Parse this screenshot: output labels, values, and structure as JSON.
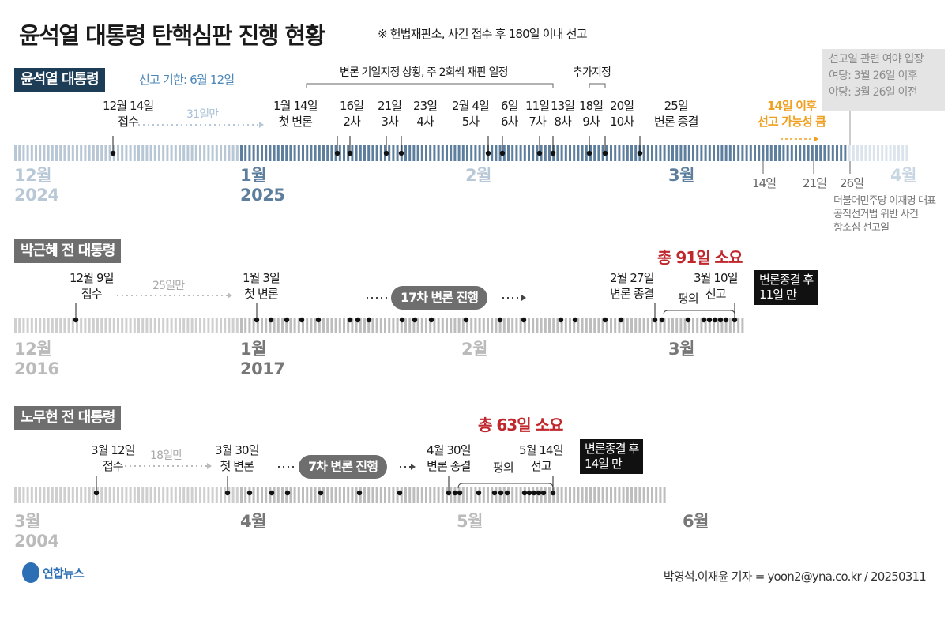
{
  "header": {
    "title": "윤석열 대통령 탄핵심판 진행 현황",
    "note": "※ 헌법재판소, 사건 접수 후 180일 이내 선고"
  },
  "yoon": {
    "label": "윤석열 대통령",
    "deadline": "선고 기한: 6월 12일",
    "bracket_label": "변론 기일지정 상황, 주 2회씩 재판 일정",
    "added_label": "추가지정",
    "info": [
      "선고일 관련 여야 입장",
      "여당: 3월 26일 이후",
      "야당: 3월 26일 이전"
    ],
    "gap_label": "31일만",
    "possible": [
      "14일 이후",
      "선고 가능성 큼"
    ],
    "events": [
      {
        "top": "12월 14일",
        "bottom": "접수"
      },
      {
        "top": "1월 14일",
        "bottom": "첫 변론"
      },
      {
        "top": "16일",
        "bottom": "2차"
      },
      {
        "top": "21일",
        "bottom": "3차"
      },
      {
        "top": "23일",
        "bottom": "4차"
      },
      {
        "top": "2월 4일",
        "bottom": "5차"
      },
      {
        "top": "6일",
        "bottom": "6차"
      },
      {
        "top": "11일",
        "bottom": "7차"
      },
      {
        "top": "13일",
        "bottom": "8차"
      },
      {
        "top": "18일",
        "bottom": "9차"
      },
      {
        "top": "20일",
        "bottom": "10차"
      },
      {
        "top": "25일",
        "bottom": "변론 종결"
      }
    ],
    "months": [
      {
        "name": "12월",
        "year": "2024"
      },
      {
        "name": "1월",
        "year": "2025"
      },
      {
        "name": "2월",
        "year": ""
      },
      {
        "name": "3월",
        "year": ""
      },
      {
        "name": "4월",
        "year": ""
      }
    ],
    "future_ticks": [
      "14일",
      "21일",
      "26일"
    ],
    "lee_case": [
      "더불어민주당 이재명 대표",
      "공직선거법 위반 사건",
      "항소심 선고일"
    ]
  },
  "park": {
    "label": "박근혜 전 대통령",
    "gap_label": "25일만",
    "pill": "17차 변론 진행",
    "total": "총 91일 소요",
    "deliberation": "평의",
    "after": [
      "변론종결 후",
      "11일 만"
    ],
    "events": [
      {
        "top": "12월 9일",
        "bottom": "접수"
      },
      {
        "top": "1월 3일",
        "bottom": "첫 변론"
      },
      {
        "top": "2월 27일",
        "bottom": "변론 종결"
      },
      {
        "top": "3월 10일",
        "bottom": "선고"
      }
    ],
    "months": [
      {
        "name": "12월",
        "year": "2016"
      },
      {
        "name": "1월",
        "year": "2017"
      },
      {
        "name": "2월",
        "year": ""
      },
      {
        "name": "3월",
        "year": ""
      }
    ]
  },
  "roh": {
    "label": "노무현 전 대통령",
    "gap_label": "18일만",
    "pill": "7차 변론 진행",
    "total": "총 63일 소요",
    "deliberation": "평의",
    "after": [
      "변론종결 후",
      "14일 만"
    ],
    "events": [
      {
        "top": "3월 12일",
        "bottom": "접수"
      },
      {
        "top": "3월 30일",
        "bottom": "첫 변론"
      },
      {
        "top": "4월 30일",
        "bottom": "변론 종결"
      },
      {
        "top": "5월 14일",
        "bottom": "선고"
      }
    ],
    "months": [
      {
        "name": "3월",
        "year": "2004"
      },
      {
        "name": "4월",
        "year": ""
      },
      {
        "name": "5월",
        "year": ""
      },
      {
        "name": "6월",
        "year": ""
      }
    ]
  },
  "footer": {
    "logo": "연합뉴스",
    "credit": "박영석.이재윤 기자 = yoon2@yna.co.kr / 20250311"
  },
  "colors": {
    "navy": "#1d3c56",
    "accent_blue": "#4b86b8",
    "orange": "#f0a020",
    "red": "#c0272d",
    "gray": "#6e6e6e"
  }
}
